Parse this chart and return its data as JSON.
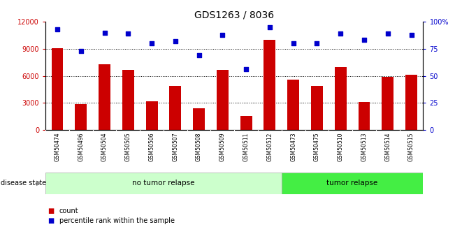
{
  "title": "GDS1263 / 8036",
  "samples": [
    "GSM50474",
    "GSM50496",
    "GSM50504",
    "GSM50505",
    "GSM50506",
    "GSM50507",
    "GSM50508",
    "GSM50509",
    "GSM50511",
    "GSM50512",
    "GSM50473",
    "GSM50475",
    "GSM50510",
    "GSM50513",
    "GSM50514",
    "GSM50515"
  ],
  "counts": [
    9100,
    2900,
    7300,
    6700,
    3200,
    4900,
    2400,
    6700,
    1600,
    10000,
    5600,
    4900,
    7000,
    3100,
    5900,
    6100
  ],
  "percentiles": [
    93,
    73,
    90,
    89,
    80,
    82,
    69,
    88,
    56,
    95,
    80,
    80,
    89,
    83,
    89,
    88
  ],
  "no_tumor_count": 10,
  "tumor_count": 6,
  "bar_color": "#cc0000",
  "dot_color": "#0000cc",
  "no_tumor_color": "#ccffcc",
  "tumor_color": "#44ee44",
  "label_bg_color": "#cccccc",
  "ylim_left": [
    0,
    12000
  ],
  "ylim_right": [
    0,
    100
  ],
  "yticks_left": [
    0,
    3000,
    6000,
    9000,
    12000
  ],
  "ytick_labels_left": [
    "0",
    "3000",
    "6000",
    "9000",
    "12000"
  ],
  "yticks_right": [
    0,
    25,
    50,
    75,
    100
  ],
  "ytick_labels_right": [
    "0",
    "25",
    "50",
    "75",
    "100%"
  ],
  "grid_lines": [
    3000,
    6000,
    9000
  ],
  "legend_items": [
    "count",
    "percentile rank within the sample"
  ]
}
